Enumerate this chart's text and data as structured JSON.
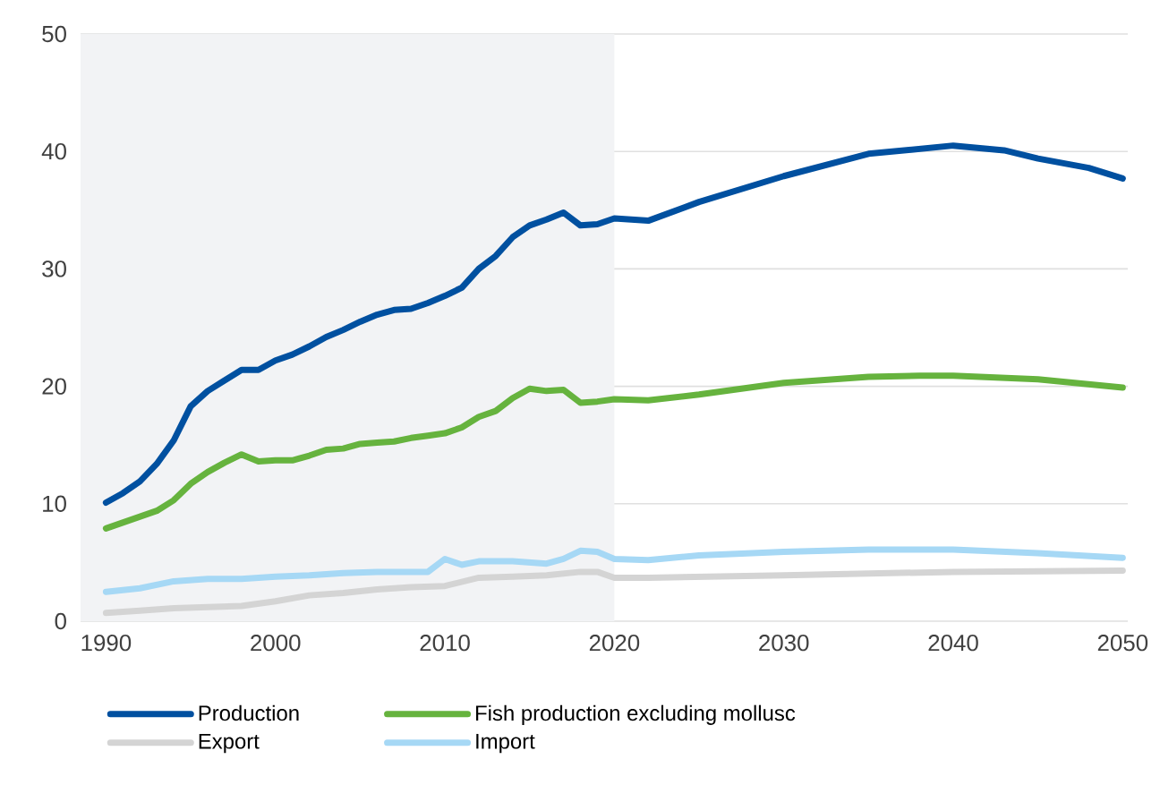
{
  "chart_data": {
    "type": "line",
    "xlim": [
      1988.5,
      2050.3
    ],
    "ylim": [
      0,
      50
    ],
    "xticks": [
      1990,
      2000,
      2010,
      2020,
      2030,
      2040,
      2050
    ],
    "yticks": [
      0,
      10,
      20,
      30,
      40,
      50
    ],
    "grid": "y",
    "legend": "bottom",
    "bands": [
      {
        "axis": "x",
        "from": 1988.5,
        "to": 2020,
        "color": "#f2f3f5"
      }
    ],
    "series": [
      {
        "name": "Production",
        "color": "#0050a0",
        "x": [
          1990,
          1991,
          1992,
          1993,
          1994,
          1995,
          1996,
          1997,
          1998,
          1999,
          2000,
          2001,
          2002,
          2003,
          2004,
          2005,
          2006,
          2007,
          2008,
          2009,
          2010,
          2011,
          2012,
          2013,
          2014,
          2015,
          2016,
          2017,
          2018,
          2019,
          2020,
          2022,
          2025,
          2030,
          2035,
          2040,
          2043,
          2045,
          2048,
          2050
        ],
        "values": [
          10.1,
          10.9,
          11.9,
          13.4,
          15.4,
          18.3,
          19.6,
          20.5,
          21.4,
          21.4,
          22.2,
          22.7,
          23.4,
          24.2,
          24.8,
          25.5,
          26.1,
          26.5,
          26.6,
          27.1,
          27.7,
          28.4,
          30.0,
          31.1,
          32.7,
          33.7,
          34.2,
          34.8,
          33.7,
          33.8,
          34.3,
          34.1,
          35.7,
          37.9,
          39.8,
          40.5,
          40.1,
          39.4,
          38.6,
          37.7
        ]
      },
      {
        "name": "Fish production excluding mollusc",
        "color": "#66b33e",
        "x": [
          1990,
          1993,
          1994,
          1995,
          1996,
          1997,
          1998,
          1999,
          2000,
          2001,
          2002,
          2003,
          2004,
          2005,
          2006,
          2007,
          2008,
          2009,
          2010,
          2011,
          2012,
          2013,
          2014,
          2015,
          2016,
          2017,
          2018,
          2019,
          2020,
          2022,
          2025,
          2030,
          2035,
          2038,
          2040,
          2045,
          2050
        ],
        "values": [
          7.9,
          9.4,
          10.3,
          11.7,
          12.7,
          13.5,
          14.2,
          13.6,
          13.7,
          13.7,
          14.1,
          14.6,
          14.7,
          15.1,
          15.2,
          15.3,
          15.6,
          15.8,
          16.0,
          16.5,
          17.4,
          17.9,
          19.0,
          19.8,
          19.6,
          19.7,
          18.6,
          18.7,
          18.9,
          18.8,
          19.3,
          20.3,
          20.8,
          20.9,
          20.9,
          20.6,
          19.9
        ]
      },
      {
        "name": "Export",
        "color": "#d4d4d4",
        "x": [
          1990,
          1992,
          1994,
          1996,
          1998,
          2000,
          2002,
          2004,
          2006,
          2008,
          2010,
          2012,
          2014,
          2016,
          2018,
          2019,
          2020,
          2022,
          2030,
          2040,
          2050
        ],
        "values": [
          0.7,
          0.9,
          1.1,
          1.2,
          1.3,
          1.7,
          2.2,
          2.4,
          2.7,
          2.9,
          3.0,
          3.7,
          3.8,
          3.9,
          4.2,
          4.2,
          3.7,
          3.7,
          3.9,
          4.2,
          4.3
        ]
      },
      {
        "name": "Import",
        "color": "#a6d8f5",
        "x": [
          1990,
          1992,
          1994,
          1996,
          1998,
          2000,
          2002,
          2004,
          2006,
          2008,
          2009,
          2010,
          2011,
          2012,
          2014,
          2016,
          2017,
          2018,
          2019,
          2020,
          2022,
          2025,
          2030,
          2035,
          2040,
          2045,
          2050
        ],
        "values": [
          2.5,
          2.8,
          3.4,
          3.6,
          3.6,
          3.8,
          3.9,
          4.1,
          4.2,
          4.2,
          4.2,
          5.3,
          4.8,
          5.1,
          5.1,
          4.9,
          5.3,
          6.0,
          5.9,
          5.3,
          5.2,
          5.6,
          5.9,
          6.1,
          6.1,
          5.8,
          5.4
        ]
      }
    ]
  }
}
